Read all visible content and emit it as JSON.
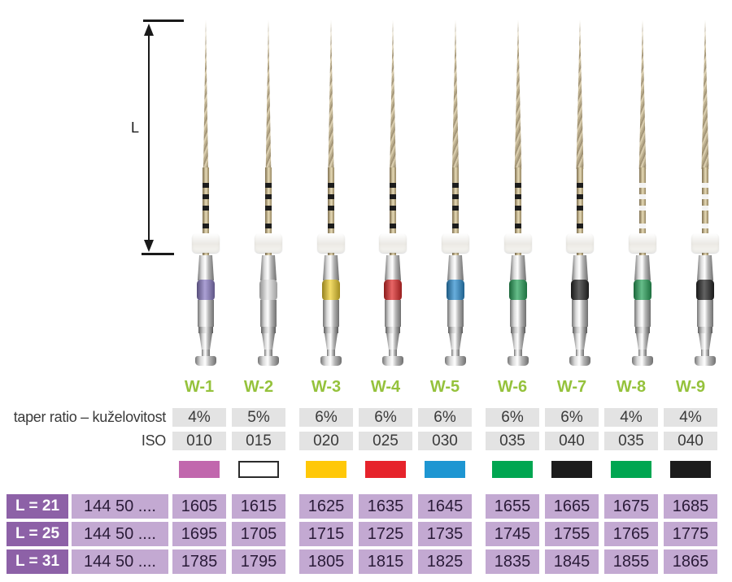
{
  "dimension": {
    "label": "L"
  },
  "spec_rows": {
    "taper_label": "taper ratio – kuželovitost",
    "iso_label": "ISO"
  },
  "products": [
    {
      "label": "W-1",
      "taper": "4%",
      "iso": "010",
      "color_name": "purple",
      "swatch": "#c167ad",
      "swatch_border": null,
      "handle_band": "#8b7cc4",
      "shaft_rings": "#1c1c1c"
    },
    {
      "label": "W-2",
      "taper": "5%",
      "iso": "015",
      "color_name": "white",
      "swatch": "#ffffff",
      "swatch_border": "#2b2b2b",
      "handle_band": "#e8e8e8",
      "shaft_rings": "#1c1c1c"
    },
    {
      "label": "W-3",
      "taper": "6%",
      "iso": "020",
      "color_name": "yellow",
      "swatch": "#ffc808",
      "swatch_border": null,
      "handle_band": "#f0d030",
      "shaft_rings": "#1c1c1c"
    },
    {
      "label": "W-4",
      "taper": "6%",
      "iso": "025",
      "color_name": "red",
      "swatch": "#e6232b",
      "swatch_border": null,
      "handle_band": "#df2b2b",
      "shaft_rings": "#1c1c1c"
    },
    {
      "label": "W-5",
      "taper": "6%",
      "iso": "030",
      "color_name": "blue",
      "swatch": "#1e96d2",
      "swatch_border": null,
      "handle_band": "#2e8fd0",
      "shaft_rings": "#1c1c1c"
    },
    {
      "label": "W-6",
      "taper": "6%",
      "iso": "035",
      "color_name": "green",
      "swatch": "#00a651",
      "swatch_border": null,
      "handle_band": "#2aa45c",
      "shaft_rings": "#1c1c1c"
    },
    {
      "label": "W-7",
      "taper": "6%",
      "iso": "040",
      "color_name": "black",
      "swatch": "#1c1c1c",
      "swatch_border": null,
      "handle_band": "#262626",
      "shaft_rings": "#1c1c1c"
    },
    {
      "label": "W-8",
      "taper": "4%",
      "iso": "035",
      "color_name": "green",
      "swatch": "#00a651",
      "swatch_border": null,
      "handle_band": "#2aa45c",
      "shaft_rings": "#f4f4f4"
    },
    {
      "label": "W-9",
      "taper": "4%",
      "iso": "040",
      "color_name": "black",
      "swatch": "#1c1c1c",
      "swatch_border": null,
      "handle_band": "#262626",
      "shaft_rings": "#f4f4f4"
    }
  ],
  "order_table": {
    "code_prefix": "144 50 ....",
    "rows": [
      {
        "length_label": "L = 21",
        "codes": [
          "1605",
          "1615",
          "1625",
          "1635",
          "1645",
          "1655",
          "1665",
          "1675",
          "1685"
        ]
      },
      {
        "length_label": "L = 25",
        "codes": [
          "1695",
          "1705",
          "1715",
          "1725",
          "1735",
          "1745",
          "1755",
          "1765",
          "1775"
        ]
      },
      {
        "length_label": "L = 31",
        "codes": [
          "1785",
          "1795",
          "1805",
          "1815",
          "1825",
          "1835",
          "1845",
          "1855",
          "1865"
        ]
      }
    ]
  },
  "colors": {
    "header_green": "#95c23c",
    "spec_cell_grey": "#e3e3e3",
    "table_dark_purple": "#8d61a7",
    "table_light_purple": "#c3a9d2",
    "text_dark": "#3a3a3a",
    "dimension_black": "#1a1a1a"
  }
}
